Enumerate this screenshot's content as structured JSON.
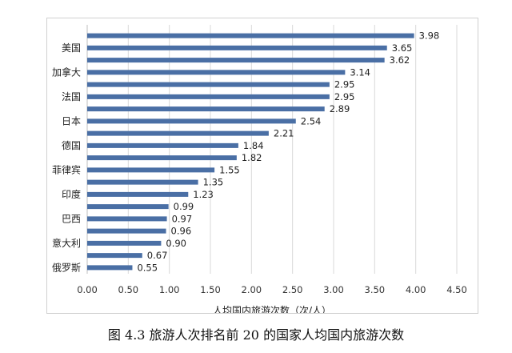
{
  "chart_data": {
    "type": "bar",
    "orientation": "horizontal",
    "categories": [
      "",
      "美国",
      "",
      "加拿大",
      "",
      "法国",
      "",
      "日本",
      "",
      "德国",
      "",
      "菲律宾",
      "",
      "印度",
      "",
      "巴西",
      "",
      "意大利",
      "",
      "俄罗斯"
    ],
    "values": [
      3.98,
      3.65,
      3.62,
      3.14,
      2.95,
      2.95,
      2.89,
      2.54,
      2.21,
      1.84,
      1.82,
      1.55,
      1.35,
      1.23,
      0.99,
      0.97,
      0.96,
      0.9,
      0.67,
      0.55
    ],
    "value_labels": [
      "3.98",
      "3.65",
      "3.62",
      "3.14",
      "2.95",
      "2.95",
      "2.89",
      "2.54",
      "2.21",
      "1.84",
      "1.82",
      "1.55",
      "1.35",
      "1.23",
      "0.99",
      "0.97",
      "0.96",
      "0.90",
      "0.67",
      "0.55"
    ],
    "xlim": [
      0,
      4.5
    ],
    "xticks": [
      "0.00",
      "0.50",
      "1.00",
      "1.50",
      "2.00",
      "2.50",
      "3.00",
      "3.50",
      "4.00",
      "4.50"
    ],
    "xlabel": "人均国内旅游次数（次/人）",
    "grid": true,
    "bar_color": "#4a6fa5"
  },
  "caption": "图 4.3  旅游人次排名前 20 的国家人均国内旅游次数"
}
